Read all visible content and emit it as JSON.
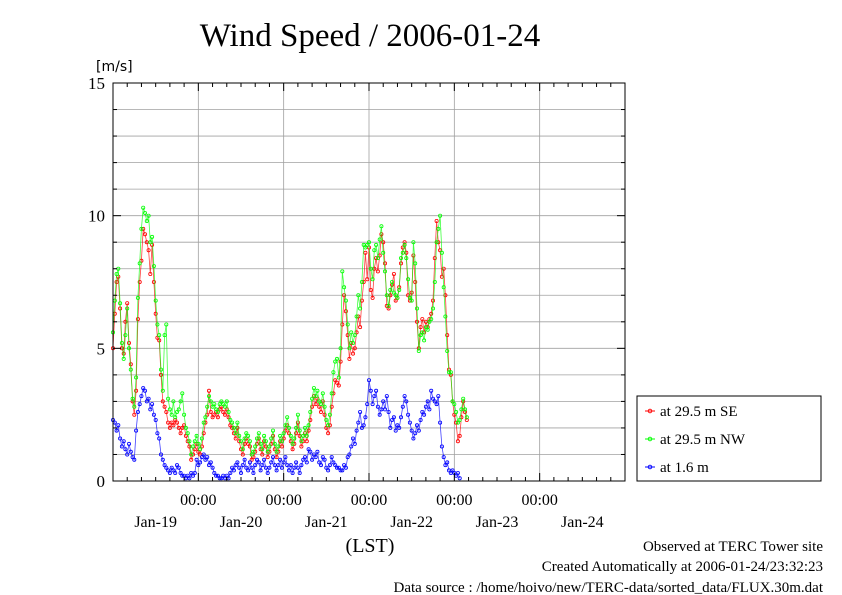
{
  "chart_data": {
    "type": "line",
    "title": "Wind Speed / 2006-01-24",
    "ylabel": "[m/s]",
    "xlabel": "(LST)",
    "ylim": [
      0,
      15
    ],
    "yticks": [
      0,
      5,
      10,
      15
    ],
    "xlim": [
      0,
      6
    ],
    "time_ticks": [
      "00:00",
      "00:00",
      "00:00",
      "00:00",
      "00:00"
    ],
    "date_labels": [
      "Jan-19",
      "Jan-20",
      "Jan-21",
      "Jan-22",
      "Jan-23",
      "Jan-24"
    ],
    "grid": true,
    "legend_position": "right",
    "x_step_days": 0.0208333,
    "series": [
      {
        "name": "at 29.5 m SE",
        "color": "#ff0000",
        "values": [
          5.0,
          6.3,
          7.5,
          7.7,
          6.5,
          5.0,
          4.8,
          6.0,
          6.7,
          5.2,
          4.4,
          3.0,
          2.5,
          3.4,
          6.1,
          7.5,
          8.3,
          9.5,
          9.3,
          9.0,
          8.7,
          7.8,
          8.9,
          7.5,
          6.3,
          5.4,
          5.3,
          4.0,
          3.0,
          2.8,
          2.6,
          2.2,
          2.0,
          2.2,
          2.1,
          2.3,
          2.2,
          2.0,
          1.8,
          2.0,
          2.1,
          1.7,
          1.5,
          1.3,
          0.8,
          1.0,
          1.2,
          1.4,
          1.1,
          1.0,
          1.3,
          1.8,
          2.2,
          2.5,
          3.4,
          2.6,
          2.4,
          2.5,
          2.6,
          2.4,
          2.7,
          2.8,
          2.6,
          2.5,
          2.7,
          2.4,
          2.1,
          2.0,
          1.8,
          1.6,
          2.0,
          1.5,
          1.2,
          1.0,
          1.4,
          1.6,
          1.4,
          1.3,
          0.8,
          0.9,
          1.1,
          1.4,
          1.6,
          1.2,
          1.0,
          1.5,
          1.3,
          0.9,
          1.1,
          1.4,
          1.7,
          1.2,
          0.9,
          1.1,
          1.5,
          1.3,
          1.6,
          1.9,
          2.1,
          1.8,
          1.5,
          1.2,
          1.4,
          1.8,
          2.2,
          1.7,
          1.3,
          1.5,
          1.8,
          1.5,
          1.9,
          2.3,
          2.8,
          3.2,
          2.9,
          3.1,
          2.8,
          2.6,
          3.0,
          2.5,
          2.0,
          1.8,
          2.1,
          2.8,
          3.3,
          3.8,
          3.7,
          3.6,
          4.5,
          5.9,
          7.0,
          6.4,
          5.5,
          4.6,
          5.2,
          4.8,
          5.0,
          5.6,
          6.2,
          5.8,
          6.8,
          7.5,
          8.6,
          7.6,
          8.8,
          7.2,
          6.9,
          8.0,
          8.4,
          7.9,
          8.5,
          9.3,
          9.0,
          8.2,
          6.6,
          6.5,
          7.0,
          7.4,
          7.8,
          6.8,
          6.9,
          7.3,
          8.2,
          8.8,
          9.0,
          8.6,
          7.0,
          6.8,
          7.1,
          8.5,
          7.5,
          6.0,
          5.0,
          5.8,
          6.1,
          5.6,
          6.0,
          5.8,
          6.1,
          6.3,
          6.8,
          8.4,
          9.8,
          9.0,
          8.7,
          7.7,
          8.0,
          7.0,
          5.5,
          4.2,
          4.0,
          3.0,
          2.5,
          2.2,
          1.5,
          1.7,
          2.4,
          3.0,
          2.6,
          2.3
        ]
      },
      {
        "name": "at 29.5 m NW",
        "color": "#00ff00",
        "values": [
          5.6,
          6.8,
          7.8,
          8.0,
          6.7,
          5.2,
          4.6,
          5.5,
          6.5,
          5.0,
          4.2,
          3.1,
          2.8,
          3.9,
          6.9,
          8.2,
          9.5,
          10.3,
          10.1,
          9.8,
          10.0,
          9.0,
          9.2,
          8.1,
          6.8,
          5.9,
          5.5,
          4.2,
          3.4,
          5.5,
          5.9,
          3.1,
          2.7,
          2.5,
          3.0,
          2.4,
          2.6,
          2.7,
          3.0,
          3.3,
          2.5,
          2.0,
          1.8,
          1.5,
          1.0,
          1.3,
          1.5,
          1.7,
          1.4,
          1.2,
          1.6,
          2.2,
          2.4,
          2.8,
          3.2,
          3.0,
          2.8,
          2.9,
          2.7,
          2.6,
          2.9,
          3.0,
          2.9,
          2.8,
          3.0,
          2.6,
          2.3,
          2.2,
          2.0,
          1.8,
          2.2,
          1.7,
          1.5,
          1.2,
          1.6,
          1.8,
          1.7,
          1.5,
          1.0,
          1.1,
          1.3,
          1.6,
          1.8,
          1.4,
          1.2,
          1.7,
          1.5,
          1.1,
          1.3,
          1.6,
          1.9,
          1.4,
          1.1,
          1.3,
          1.7,
          1.5,
          1.8,
          2.1,
          2.4,
          2.0,
          1.7,
          1.4,
          1.6,
          2.0,
          2.5,
          1.9,
          1.5,
          1.7,
          2.0,
          1.7,
          2.1,
          2.6,
          3.1,
          3.5,
          3.2,
          3.4,
          3.0,
          2.9,
          3.3,
          2.8,
          2.3,
          2.1,
          2.5,
          3.3,
          4.1,
          4.5,
          4.6,
          3.9,
          5.0,
          7.9,
          7.3,
          6.8,
          5.9,
          5.0,
          5.6,
          5.2,
          5.5,
          6.2,
          7.0,
          6.5,
          7.5,
          8.9,
          8.8,
          8.9,
          9.0,
          8.0,
          7.6,
          8.7,
          8.9,
          8.4,
          9.1,
          9.6,
          8.6,
          7.9,
          7.0,
          6.6,
          7.2,
          7.5,
          7.1,
          7.0,
          6.9,
          7.2,
          8.4,
          8.6,
          8.9,
          8.4,
          7.6,
          6.9,
          6.8,
          9.0,
          8.2,
          6.5,
          4.9,
          5.5,
          5.6,
          5.3,
          5.8,
          5.7,
          6.0,
          6.1,
          6.5,
          7.5,
          9.0,
          9.5,
          10.0,
          8.6,
          7.3,
          6.2,
          4.9,
          4.1,
          4.1,
          3.0,
          2.9,
          2.6,
          2.2,
          2.3,
          2.7,
          3.1,
          2.7,
          2.4
        ]
      },
      {
        "name": "at 1.6 m",
        "color": "#0000ff",
        "values": [
          2.3,
          2.2,
          1.9,
          2.1,
          1.6,
          1.3,
          1.5,
          1.2,
          1.0,
          1.4,
          1.1,
          0.9,
          0.8,
          1.9,
          2.6,
          2.9,
          3.2,
          3.5,
          3.4,
          3.0,
          3.1,
          2.7,
          2.9,
          2.5,
          2.3,
          1.8,
          1.6,
          1.0,
          0.8,
          0.6,
          0.5,
          0.4,
          0.3,
          0.5,
          0.4,
          0.3,
          0.6,
          0.5,
          0.3,
          0.2,
          0.2,
          0.1,
          0.2,
          0.1,
          0.3,
          0.2,
          0.3,
          0.8,
          0.6,
          0.7,
          0.9,
          1.0,
          0.8,
          0.9,
          0.6,
          0.7,
          0.5,
          0.3,
          0.2,
          0.2,
          0.1,
          0.1,
          0.2,
          0.1,
          0.2,
          0.1,
          0.3,
          0.5,
          0.4,
          0.6,
          0.7,
          0.5,
          0.3,
          0.6,
          0.8,
          0.5,
          0.4,
          0.7,
          0.5,
          0.3,
          0.6,
          0.8,
          0.7,
          0.4,
          0.6,
          0.8,
          0.5,
          0.3,
          0.5,
          0.7,
          0.9,
          0.6,
          0.4,
          0.6,
          0.8,
          0.5,
          0.7,
          0.9,
          0.6,
          0.4,
          0.6,
          0.3,
          0.5,
          0.7,
          0.5,
          0.3,
          0.6,
          0.8,
          0.9,
          0.7,
          1.2,
          1.1,
          0.8,
          1.0,
          0.9,
          1.1,
          0.7,
          0.6,
          0.9,
          0.8,
          0.5,
          0.4,
          0.6,
          0.9,
          0.7,
          0.6,
          0.5,
          0.5,
          0.4,
          0.4,
          0.6,
          0.5,
          0.9,
          1.0,
          1.3,
          1.6,
          1.4,
          1.9,
          2.2,
          2.6,
          2.0,
          2.1,
          2.4,
          2.9,
          3.8,
          3.4,
          2.9,
          3.2,
          3.4,
          2.8,
          2.5,
          2.7,
          3.0,
          2.7,
          3.2,
          2.6,
          2.0,
          2.3,
          2.4,
          1.9,
          2.1,
          2.0,
          2.4,
          2.8,
          3.2,
          3.0,
          2.5,
          2.2,
          1.9,
          1.6,
          1.8,
          2.1,
          1.9,
          2.3,
          2.6,
          2.5,
          2.8,
          3.0,
          2.7,
          3.4,
          3.1,
          3.0,
          2.9,
          3.2,
          2.2,
          1.3,
          0.9,
          0.6,
          0.7,
          0.4,
          0.3,
          0.4,
          0.3,
          0.2,
          0.3,
          0.1
        ]
      }
    ]
  },
  "footer": {
    "observed": "Observed at TERC Tower site",
    "created": "Created Automatically at 2006-01-24/23:32:23",
    "source": "Data source : /home/hoivo/new/TERC-data/sorted_data/FLUX.30m.dat"
  }
}
